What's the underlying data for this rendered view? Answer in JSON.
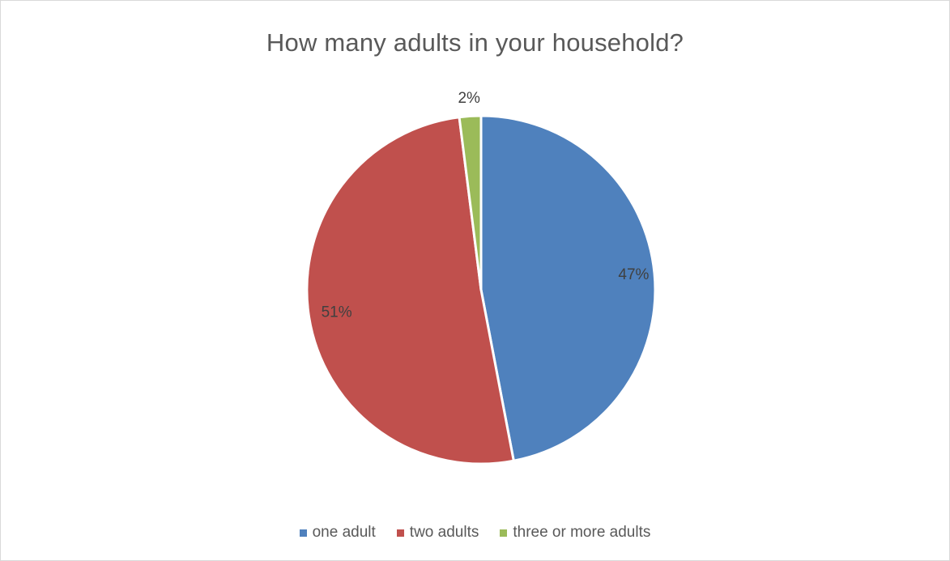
{
  "chart_data": {
    "type": "pie",
    "title": "How many adults in your household?",
    "slices": [
      {
        "label": "one adult",
        "value": 47,
        "display": "47%",
        "color": "#4f81bd"
      },
      {
        "label": "two adults",
        "value": 51,
        "display": "51%",
        "color": "#c0504d"
      },
      {
        "label": "three or more adults",
        "value": 2,
        "display": "2%",
        "color": "#9bbb59"
      }
    ],
    "legend_position": "bottom",
    "data_label_color": "#404040"
  }
}
